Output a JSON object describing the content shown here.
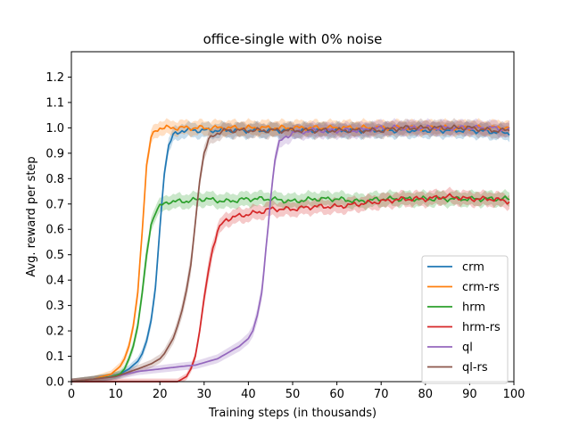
{
  "chart_data": {
    "type": "line",
    "title": "office-single with 0% noise",
    "xlabel": "Training steps (in thousands)",
    "ylabel": "Avg. reward per step",
    "xlim": [
      0,
      100
    ],
    "ylim": [
      0.0,
      1.3
    ],
    "xticks": [
      "0",
      "10",
      "20",
      "30",
      "40",
      "50",
      "60",
      "70",
      "80",
      "90",
      "100"
    ],
    "yticks": [
      "0.0",
      "0.1",
      "0.2",
      "0.3",
      "0.4",
      "0.5",
      "0.6",
      "0.7",
      "0.8",
      "0.9",
      "1.0",
      "1.1",
      "1.2"
    ],
    "grid": false,
    "legend_position": "lower right",
    "series": [
      {
        "name": "crm",
        "color": "#1f77b4",
        "x": [
          0,
          5,
          9,
          11,
          13,
          15,
          16,
          17,
          18,
          19,
          20,
          21,
          22,
          23,
          24,
          25,
          27,
          30,
          35,
          40,
          50,
          60,
          70,
          80,
          90,
          99
        ],
        "y": [
          0.0,
          0.01,
          0.02,
          0.03,
          0.05,
          0.08,
          0.11,
          0.16,
          0.24,
          0.37,
          0.6,
          0.83,
          0.93,
          0.97,
          0.98,
          0.99,
          0.99,
          0.99,
          0.99,
          0.99,
          0.99,
          0.99,
          0.99,
          0.99,
          0.99,
          0.98
        ]
      },
      {
        "name": "crm-rs",
        "color": "#ff7f0e",
        "x": [
          0,
          5,
          9,
          11,
          12,
          13,
          14,
          15,
          16,
          17,
          18,
          19,
          20,
          22,
          25,
          30,
          40,
          50,
          60,
          70,
          80,
          90,
          99
        ],
        "y": [
          0.0,
          0.01,
          0.03,
          0.06,
          0.09,
          0.14,
          0.22,
          0.35,
          0.6,
          0.85,
          0.96,
          0.99,
          1.0,
          1.0,
          1.0,
          1.0,
          1.0,
          1.0,
          1.0,
          1.0,
          1.0,
          1.0,
          1.0
        ]
      },
      {
        "name": "hrm",
        "color": "#2ca02c",
        "x": [
          0,
          5,
          9,
          11,
          12,
          13,
          14,
          15,
          16,
          17,
          18,
          19,
          20,
          21,
          22,
          25,
          30,
          35,
          40,
          45,
          50,
          55,
          60,
          65,
          70,
          75,
          80,
          85,
          90,
          95,
          99
        ],
        "y": [
          0.0,
          0.01,
          0.02,
          0.03,
          0.05,
          0.09,
          0.14,
          0.22,
          0.35,
          0.5,
          0.62,
          0.67,
          0.69,
          0.7,
          0.71,
          0.71,
          0.72,
          0.71,
          0.72,
          0.72,
          0.71,
          0.72,
          0.72,
          0.71,
          0.72,
          0.72,
          0.72,
          0.72,
          0.72,
          0.72,
          0.72
        ]
      },
      {
        "name": "hrm-rs",
        "color": "#d62728",
        "x": [
          0,
          10,
          20,
          24,
          25,
          26,
          27,
          28,
          29,
          30,
          31,
          32,
          33,
          34,
          35,
          37,
          40,
          43,
          45,
          50,
          55,
          60,
          65,
          70,
          75,
          80,
          85,
          90,
          95,
          99
        ],
        "y": [
          0.0,
          0.0,
          0.0,
          0.0,
          0.01,
          0.02,
          0.05,
          0.1,
          0.2,
          0.33,
          0.44,
          0.53,
          0.59,
          0.62,
          0.64,
          0.65,
          0.66,
          0.67,
          0.68,
          0.68,
          0.69,
          0.69,
          0.7,
          0.71,
          0.72,
          0.72,
          0.73,
          0.72,
          0.72,
          0.71
        ]
      },
      {
        "name": "ql",
        "color": "#9467bd",
        "x": [
          0,
          5,
          10,
          15,
          20,
          25,
          28,
          30,
          33,
          35,
          38,
          40,
          41,
          42,
          43,
          44,
          45,
          46,
          47,
          48,
          50,
          55,
          60,
          65,
          70,
          75,
          80,
          85,
          90,
          95,
          99
        ],
        "y": [
          0.0,
          0.01,
          0.02,
          0.04,
          0.05,
          0.06,
          0.065,
          0.075,
          0.09,
          0.11,
          0.14,
          0.17,
          0.2,
          0.26,
          0.35,
          0.52,
          0.72,
          0.88,
          0.94,
          0.96,
          0.98,
          0.99,
          0.99,
          0.99,
          1.0,
          1.0,
          1.0,
          1.0,
          1.0,
          1.0,
          0.99
        ]
      },
      {
        "name": "ql-rs",
        "color": "#8c564b",
        "x": [
          0,
          5,
          10,
          15,
          18,
          20,
          21,
          22,
          23,
          24,
          25,
          26,
          27,
          28,
          29,
          30,
          31,
          32,
          33,
          35,
          40,
          45,
          50,
          55,
          60,
          65,
          70,
          75,
          80,
          85,
          90,
          95,
          99
        ],
        "y": [
          0.0,
          0.01,
          0.02,
          0.05,
          0.07,
          0.09,
          0.11,
          0.14,
          0.17,
          0.22,
          0.28,
          0.36,
          0.46,
          0.62,
          0.8,
          0.9,
          0.95,
          0.97,
          0.98,
          0.99,
          0.99,
          0.99,
          0.99,
          0.99,
          0.99,
          0.99,
          0.99,
          1.0,
          1.0,
          1.0,
          1.0,
          0.99,
          0.99
        ]
      }
    ]
  }
}
